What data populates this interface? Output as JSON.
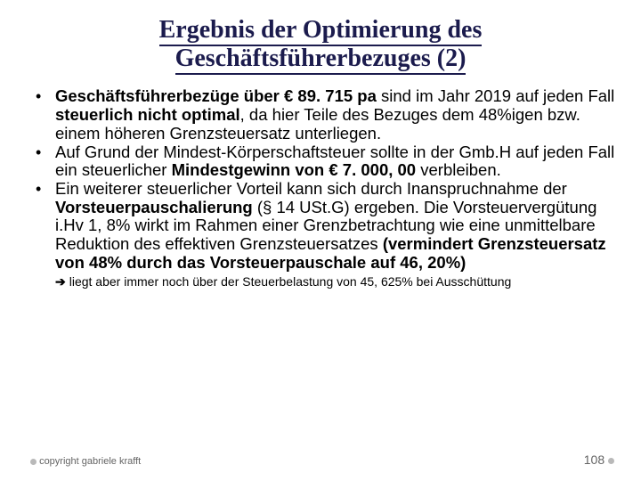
{
  "title_line1": "Ergebnis der Optimierung des",
  "title_line2": "Geschäftsführerbezuges (2)",
  "bullets": [
    {
      "pre": "",
      "bold1": "Geschäftsführerbezüge über € 89. 715 pa",
      "mid1": " sind im Jahr 2019 auf jeden Fall ",
      "bold2": "steuerlich nicht optimal",
      "mid2": ", da hier Teile des Bezuges dem 48%igen bzw. einem höheren Grenzsteuersatz unterliegen."
    },
    {
      "pre": "Auf Grund der Mindest-Körperschaftsteuer sollte in der Gmb.H auf jeden Fall ein steuerlicher ",
      "bold1": "Mindestgewinn von € 7. 000, 00",
      "mid1": " verbleiben.",
      "bold2": "",
      "mid2": ""
    },
    {
      "pre": "Ein weiterer steuerlicher Vorteil kann sich durch Inanspruchnahme der ",
      "bold1": "Vorsteuerpauschalierung",
      "mid1": " (§ 14 USt.G) ergeben. Die Vorsteuervergütung i.Hv 1, 8% wirkt im Rahmen einer Grenzbetrachtung wie eine unmittelbare Reduktion des effektiven Grenzsteuersatzes ",
      "bold2": "(vermindert Grenzsteuersatz von 48% durch das Vorsteuerpauschale auf 46, 20%)",
      "mid2": ""
    }
  ],
  "subnote": "liegt aber immer noch über der Steuerbelastung von 45, 625% bei Ausschüttung",
  "copyright": "copyright gabriele krafft",
  "pagenum": "108",
  "colors": {
    "title_color": "#1b1b4d",
    "text_color": "#000000",
    "footer_color": "#646464",
    "dot_color": "#b9b9b9",
    "background": "#ffffff"
  }
}
